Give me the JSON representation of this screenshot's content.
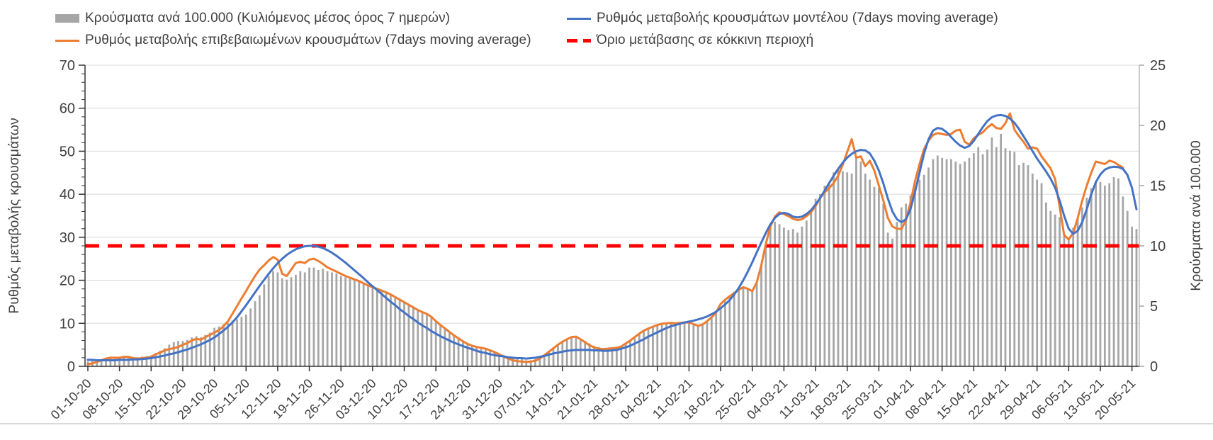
{
  "legend": {
    "items": [
      {
        "label": "Κρούσματα ανά 100.000 (Κυλιόμενος μέσος όρος 7 ημερών)",
        "series": "cases-bars",
        "color": "#a6a6a6"
      },
      {
        "label": "Ρυθμός μεταβολής κρουσμάτων μοντέλου (7days moving average)",
        "series": "model-line",
        "color": "#4472c4"
      },
      {
        "label": "Ρυθμός μεταβολής επιβεβαιωμένων κρουσμάτων (7days moving average)",
        "series": "confirmed-line",
        "color": "#ed7d31"
      },
      {
        "label": "Όριο μετάβασης σε κόκκινη περιοχή",
        "series": "threshold-line",
        "color": "#fe0000"
      }
    ]
  },
  "chart_data": {
    "type": "combo-bar-line",
    "grid": "horizontal-left-axis",
    "frequency": "daily",
    "start_date": "01-10-20",
    "end_date": "20-05-21",
    "left_axis": {
      "label": "Ρυθμός μεταβολής κρουσμάτων",
      "min": 0,
      "max": 70,
      "major_ticks": [
        0,
        10,
        20,
        30,
        40,
        50,
        60,
        70
      ],
      "minor_step": 2
    },
    "right_axis": {
      "label": "Κρούσματα ανά 100.000",
      "min": 0,
      "max": 25,
      "major_ticks": [
        0,
        5,
        10,
        15,
        20,
        25
      ]
    },
    "x_tick_labels": [
      "01-10-20",
      "08-10-20",
      "15-10-20",
      "22-10-20",
      "29-10-20",
      "05-11-20",
      "12-11-20",
      "19-11-20",
      "26-11-20",
      "03-12-20",
      "10-12-20",
      "17-12-20",
      "24-12-20",
      "31-12-20",
      "07-01-21",
      "14-01-21",
      "21-01-21",
      "28-01-21",
      "04-02-21",
      "11-02-21",
      "18-02-21",
      "25-02-21",
      "04-03-21",
      "11-03-21",
      "18-03-21",
      "25-03-21",
      "01-04-21",
      "08-04-21",
      "15-04-21",
      "22-04-21",
      "29-04-21",
      "06-05-21",
      "13-05-21",
      "20-05-21"
    ],
    "days_per_tick": 7,
    "threshold": {
      "name": "Όριο μετάβασης σε κόκκινη περιοχή",
      "axis": "left",
      "value": 28,
      "value_right_axis": 10,
      "color": "#fe0000",
      "style": "dashed"
    },
    "series": [
      {
        "name": "Κρούσματα ανά 100.000 (Κυλιόμενος μέσος όρος 7 ημερών)",
        "type": "bar",
        "axis": "right",
        "color": "#a6a6a6",
        "values": [
          0.4,
          0.45,
          0.5,
          0.55,
          0.6,
          0.65,
          0.7,
          0.75,
          0.8,
          0.8,
          0.75,
          0.75,
          0.8,
          0.85,
          0.9,
          1.1,
          1.3,
          1.5,
          1.8,
          2.0,
          2.1,
          2.1,
          2.2,
          2.4,
          2.5,
          2.4,
          2.6,
          2.8,
          3.2,
          3.3,
          3.5,
          3.6,
          3.8,
          3.9,
          4.1,
          4.3,
          4.8,
          5.4,
          5.9,
          6.8,
          7.5,
          7.9,
          7.8,
          7.3,
          7.2,
          7.4,
          7.6,
          7.9,
          7.8,
          8.2,
          8.2,
          8.0,
          8.1,
          7.9,
          7.8,
          7.7,
          7.5,
          7.4,
          7.3,
          7.2,
          7.0,
          6.9,
          6.7,
          6.6,
          6.4,
          6.3,
          6.1,
          6.0,
          5.8,
          5.6,
          5.3,
          5.1,
          4.9,
          4.7,
          4.5,
          4.4,
          4.1,
          3.8,
          3.4,
          3.1,
          2.9,
          2.6,
          2.3,
          2.1,
          1.9,
          1.7,
          1.6,
          1.5,
          1.5,
          1.4,
          1.2,
          1.0,
          0.9,
          0.8,
          0.7,
          0.6,
          0.6,
          0.5,
          0.5,
          0.6,
          0.7,
          0.9,
          1.2,
          1.5,
          1.8,
          2.0,
          2.2,
          2.4,
          2.4,
          2.3,
          2.1,
          1.9,
          1.7,
          1.6,
          1.5,
          1.5,
          1.5,
          1.6,
          1.7,
          1.9,
          2.1,
          2.4,
          2.7,
          2.9,
          3.1,
          3.3,
          3.4,
          3.5,
          3.6,
          3.6,
          3.6,
          3.6,
          3.7,
          3.6,
          3.5,
          3.4,
          3.5,
          3.7,
          4.0,
          4.4,
          4.9,
          5.4,
          5.8,
          6.2,
          6.4,
          6.6,
          6.5,
          6.3,
          7.0,
          8.4,
          10.2,
          11.5,
          12.0,
          11.8,
          11.5,
          11.3,
          11.4,
          11.1,
          11.6,
          12.1,
          12.9,
          13.9,
          14.3,
          15.0,
          15.2,
          16.1,
          16.3,
          16.2,
          16.1,
          16.0,
          17.3,
          17.0,
          16.0,
          15.5,
          14.9,
          14.8,
          13.5,
          11.1,
          10.6,
          12.0,
          13.2,
          13.5,
          14.2,
          14.8,
          15.5,
          15.9,
          16.5,
          17.2,
          17.5,
          17.3,
          17.2,
          17.2,
          17.0,
          16.8,
          17.0,
          17.3,
          17.7,
          18.2,
          17.6,
          18.0,
          19.0,
          18.2,
          19.3,
          18.1,
          17.9,
          17.8,
          16.7,
          16.9,
          16.7,
          16.0,
          15.5,
          15.2,
          13.6,
          12.9,
          12.6,
          12.4,
          11.0,
          10.7,
          11.5,
          12.3,
          13.2,
          14.0,
          14.8,
          15.4,
          15.3,
          15.0,
          15.2,
          15.7,
          15.6,
          14.1,
          12.9,
          11.6,
          11.4
        ]
      },
      {
        "name": "Ρυθμός μεταβολής επιβεβαιωμένων κρουσμάτων (7days moving average)",
        "type": "line",
        "axis": "left",
        "color": "#ed7d31",
        "values": [
          0.5,
          0.7,
          1.0,
          1.4,
          1.8,
          2.0,
          2.0,
          2.0,
          2.2,
          2.2,
          1.9,
          1.8,
          1.9,
          2.0,
          2.2,
          2.8,
          3.2,
          3.7,
          4.0,
          4.2,
          4.5,
          5.0,
          5.4,
          6.0,
          6.4,
          6.2,
          6.8,
          7.3,
          7.8,
          8.4,
          9.3,
          10.5,
          12.2,
          14.0,
          15.8,
          17.5,
          19.3,
          21.0,
          22.5,
          23.5,
          24.6,
          25.4,
          24.8,
          21.5,
          21.0,
          22.5,
          24.0,
          24.3,
          24.0,
          24.8,
          25.0,
          24.5,
          23.8,
          23.0,
          22.5,
          22.0,
          21.5,
          21.0,
          20.6,
          20.2,
          19.8,
          19.3,
          18.8,
          18.4,
          18.0,
          17.6,
          17.2,
          16.7,
          16.1,
          15.5,
          14.9,
          14.3,
          13.7,
          13.1,
          12.6,
          12.2,
          11.5,
          10.5,
          9.6,
          8.8,
          8.0,
          7.2,
          6.5,
          5.8,
          5.2,
          4.8,
          4.5,
          4.3,
          4.1,
          3.7,
          3.3,
          2.8,
          2.3,
          1.8,
          1.4,
          1.2,
          1.1,
          1.0,
          1.1,
          1.3,
          1.8,
          2.6,
          3.4,
          4.2,
          5.0,
          5.7,
          6.3,
          6.8,
          6.9,
          6.3,
          5.6,
          4.9,
          4.4,
          4.1,
          4.0,
          4.1,
          4.2,
          4.3,
          4.6,
          5.3,
          6.0,
          6.8,
          7.6,
          8.3,
          8.8,
          9.2,
          9.6,
          9.9,
          10.0,
          10.1,
          10.0,
          10.1,
          10.2,
          10.2,
          9.8,
          9.4,
          9.7,
          10.5,
          11.4,
          12.5,
          14.5,
          15.5,
          16.3,
          17.0,
          17.8,
          18.4,
          18.0,
          17.5,
          19.5,
          23.5,
          28.5,
          32.5,
          34.8,
          35.8,
          35.4,
          34.9,
          34.3,
          34.0,
          34.2,
          34.9,
          35.8,
          37.3,
          39.1,
          40.4,
          41.4,
          42.6,
          44.3,
          46.8,
          49.8,
          52.8,
          48.5,
          48.8,
          46.5,
          47.8,
          45.5,
          42.0,
          38.5,
          34.5,
          32.5,
          32.0,
          31.9,
          34.0,
          38.0,
          43.0,
          47.0,
          50.5,
          52.5,
          53.8,
          54.2,
          54.0,
          53.8,
          54.0,
          54.8,
          55.0,
          52.2,
          51.5,
          53.0,
          53.8,
          54.4,
          55.5,
          56.3,
          55.4,
          55.2,
          56.5,
          58.8,
          55.0,
          53.5,
          52.2,
          50.6,
          50.9,
          50.6,
          48.8,
          47.4,
          46.0,
          43.5,
          37.0,
          30.5,
          29.5,
          31.0,
          34.5,
          38.5,
          42.0,
          45.0,
          47.6,
          47.3,
          47.0,
          47.8,
          47.5,
          46.8,
          46.2,
          null,
          null,
          null
        ]
      },
      {
        "name": "Ρυθμός μεταβολής κρουσμάτων μοντέλου (7days moving average)",
        "type": "line",
        "axis": "left",
        "color": "#4472c4",
        "values": [
          1.5,
          1.5,
          1.4,
          1.4,
          1.4,
          1.4,
          1.4,
          1.5,
          1.5,
          1.5,
          1.6,
          1.6,
          1.7,
          1.8,
          1.9,
          2.1,
          2.3,
          2.5,
          2.8,
          3.0,
          3.3,
          3.6,
          3.9,
          4.3,
          4.7,
          5.1,
          5.6,
          6.1,
          6.7,
          7.5,
          8.3,
          9.2,
          10.2,
          11.4,
          12.8,
          14.2,
          15.7,
          17.2,
          18.7,
          20.1,
          21.5,
          22.8,
          24.0,
          25.0,
          25.9,
          26.6,
          27.2,
          27.6,
          27.9,
          28.0,
          28.0,
          27.8,
          27.5,
          27.0,
          26.4,
          25.7,
          24.9,
          24.1,
          23.2,
          22.3,
          21.4,
          20.5,
          19.5,
          18.6,
          17.7,
          16.8,
          15.9,
          15.0,
          14.2,
          13.3,
          12.5,
          11.7,
          11.0,
          10.2,
          9.5,
          8.9,
          8.2,
          7.6,
          7.0,
          6.5,
          6.0,
          5.5,
          5.1,
          4.7,
          4.3,
          4.0,
          3.6,
          3.3,
          3.1,
          2.8,
          2.6,
          2.4,
          2.3,
          2.1,
          2.0,
          1.9,
          1.9,
          1.8,
          1.9,
          2.0,
          2.2,
          2.4,
          2.7,
          3.0,
          3.2,
          3.4,
          3.6,
          3.7,
          3.8,
          3.8,
          3.8,
          3.8,
          3.7,
          3.7,
          3.6,
          3.6,
          3.7,
          3.8,
          4.1,
          4.4,
          4.8,
          5.3,
          5.8,
          6.3,
          6.9,
          7.4,
          7.9,
          8.4,
          8.9,
          9.3,
          9.6,
          9.9,
          10.2,
          10.4,
          10.6,
          10.9,
          11.2,
          11.6,
          12.1,
          12.7,
          13.5,
          14.4,
          15.4,
          16.7,
          18.2,
          20.0,
          22.0,
          24.2,
          26.5,
          28.8,
          31.0,
          33.0,
          34.5,
          35.4,
          35.7,
          35.4,
          34.8,
          34.6,
          34.8,
          35.4,
          36.3,
          37.6,
          39.1,
          40.8,
          42.6,
          44.3,
          45.9,
          47.3,
          48.5,
          49.4,
          50.0,
          50.3,
          50.2,
          49.5,
          47.8,
          45.5,
          42.5,
          39.0,
          36.0,
          34.2,
          33.5,
          34.2,
          36.5,
          40.5,
          45.0,
          49.5,
          52.8,
          54.8,
          55.4,
          55.2,
          54.4,
          53.3,
          52.2,
          51.3,
          50.8,
          51.2,
          52.4,
          54.0,
          55.6,
          57.0,
          57.9,
          58.3,
          58.4,
          58.2,
          57.6,
          56.6,
          55.2,
          53.5,
          51.8,
          50.0,
          48.3,
          46.8,
          45.3,
          43.6,
          41.5,
          38.5,
          35.0,
          32.0,
          30.8,
          31.5,
          33.5,
          36.5,
          40.0,
          42.8,
          44.6,
          45.7,
          46.2,
          46.4,
          46.3,
          45.9,
          44.5,
          41.5,
          36.5
        ]
      }
    ]
  }
}
